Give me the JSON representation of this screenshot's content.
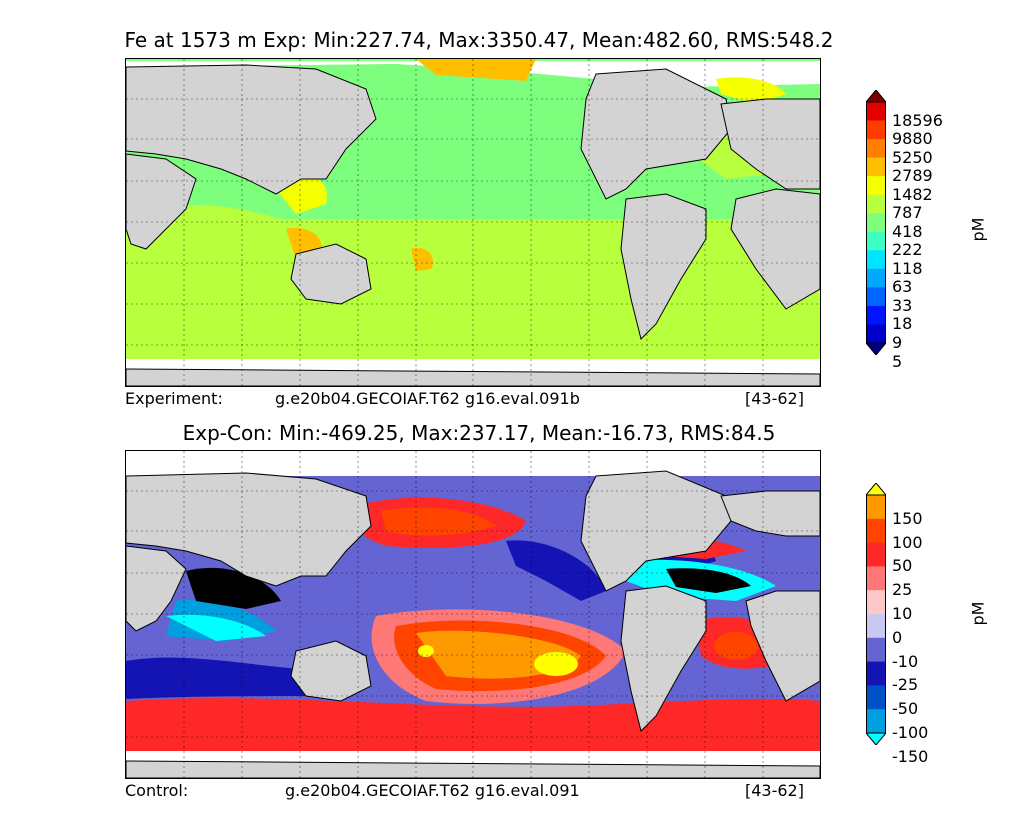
{
  "panels": {
    "top": {
      "title": "Fe at 1573 m Exp: Min:227.74, Max:3350.47, Mean:482.60, RMS:548.2",
      "footer_left": "Experiment:",
      "footer_case": "g.e20b04.GECOIAF.T62 g16.eval.091b",
      "footer_years": "[43-62]",
      "colorbar_unit": "pM"
    },
    "bottom": {
      "title": "Exp-Con: Min:-469.25, Max:237.17, Mean:-16.73, RMS:84.5",
      "footer_left": "Control:",
      "footer_case": "g.e20b04.GECOIAF.T62 g16.eval.091",
      "footer_years": "[43-62]",
      "colorbar_unit": "pM"
    }
  },
  "chart_data": [
    {
      "type": "heatmap",
      "title": "Fe at 1573 m Exp: Min:227.74, Max:3350.47, Mean:482.60, RMS:548.2",
      "variable": "Fe",
      "depth": "1573 m",
      "stats": {
        "min": 227.74,
        "max": 3350.47,
        "mean": 482.6,
        "rms": 548.2
      },
      "unit": "pM",
      "colorbar_levels": [
        5,
        9,
        18,
        33,
        63,
        118,
        222,
        418,
        787,
        1482,
        2789,
        5250,
        9880,
        18596
      ],
      "colorbar_colors": [
        "#00007f",
        "#0000cc",
        "#0014ff",
        "#0066ff",
        "#00a8ff",
        "#00e5ff",
        "#3dffc2",
        "#7dff7d",
        "#b8ff3d",
        "#f5ff00",
        "#ffbf00",
        "#ff7f00",
        "#ff3c00",
        "#e50000",
        "#7f0000"
      ],
      "map_background": "#d3d3d3",
      "dominant_color": "#7dff7d",
      "grid": true,
      "caption": "Experiment: g.e20b04.GECOIAF.T62 g16.eval.091b [43-62]"
    },
    {
      "type": "heatmap",
      "title": "Exp-Con: Min:-469.25, Max:237.17, Mean:-16.73, RMS:84.5",
      "stats": {
        "min": -469.25,
        "max": 237.17,
        "mean": -16.73,
        "rms": 84.5
      },
      "unit": "pM",
      "colorbar_levels": [
        -150,
        -100,
        -50,
        -25,
        -10,
        0,
        10,
        25,
        50,
        100,
        150
      ],
      "colorbar_tick_labels": [
        "150",
        "100",
        "50",
        "25",
        "10",
        "0",
        "-10",
        "-25",
        "-50",
        "-100",
        "-150"
      ],
      "colorbar_colors": [
        "#00ffff",
        "#00a0e0",
        "#0050c8",
        "#1414b4",
        "#6464d2",
        "#c8c8f0",
        "#ffc8c8",
        "#ff7878",
        "#ff2828",
        "#ff4400",
        "#ff9900",
        "#ffff00"
      ],
      "map_background": "#d3d3d3",
      "grid": true,
      "caption": "Control: g.e20b04.GECOIAF.T62 g16.eval.091 [43-62]"
    }
  ]
}
